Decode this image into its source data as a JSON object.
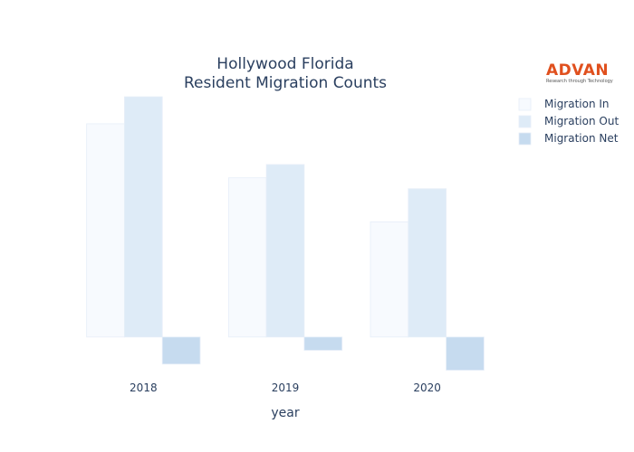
{
  "chart_data": {
    "type": "bar",
    "title": [
      "Hollywood Florida",
      "Resident Migration Counts"
    ],
    "xlabel": "year",
    "ylabel": "",
    "categories": [
      "2018",
      "2019",
      "2020"
    ],
    "series": [
      {
        "name": "Migration In",
        "values": [
          450,
          336,
          243
        ],
        "color": "#f7fafe"
      },
      {
        "name": "Migration Out",
        "values": [
          507,
          364,
          313
        ],
        "color": "#deebf7"
      },
      {
        "name": "Migration Net",
        "values": [
          -57,
          -28,
          -70
        ],
        "color": "#c6dbef"
      }
    ],
    "ylim": [
      -90,
      530
    ],
    "grid": false,
    "legend": "top-right"
  },
  "logo": {
    "name": "ADVAN",
    "tagline": "Research through Technology"
  }
}
